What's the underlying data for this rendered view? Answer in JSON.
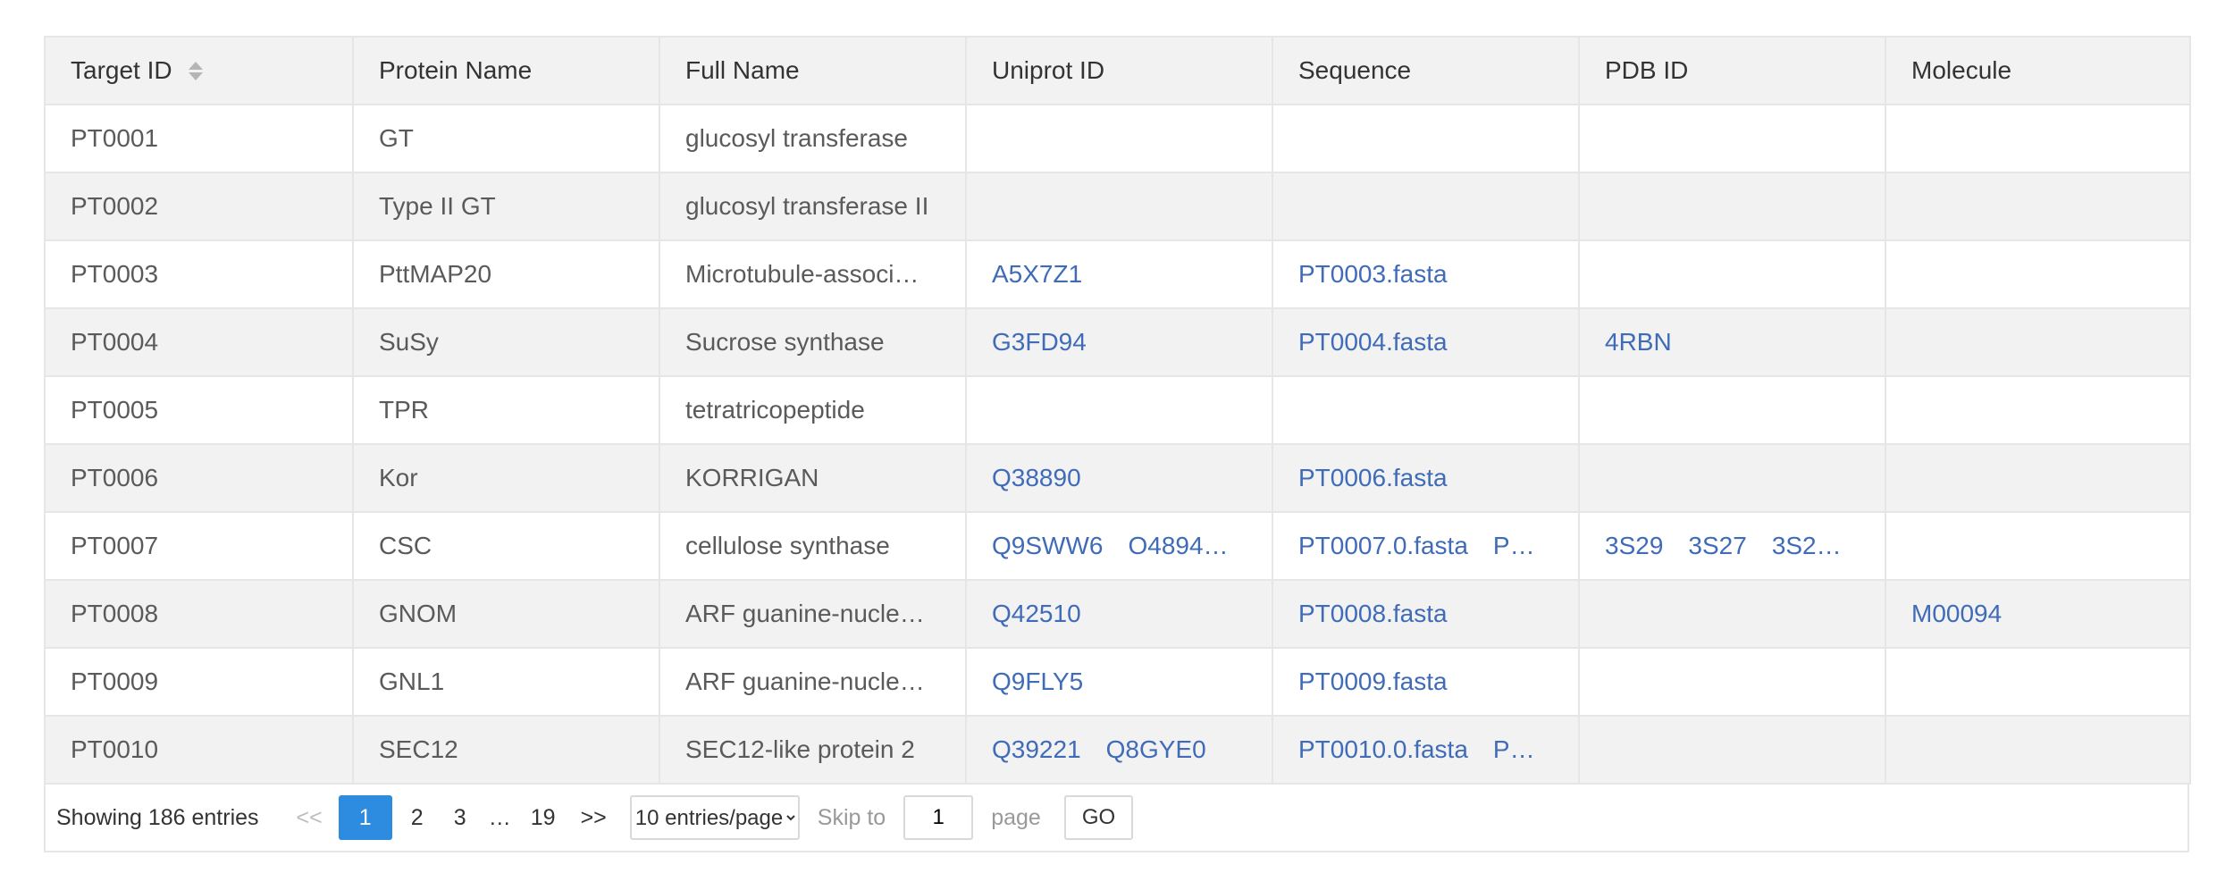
{
  "table": {
    "columns": [
      "Target ID",
      "Protein Name",
      "Full Name",
      "Uniprot ID",
      "Sequence",
      "PDB ID",
      "Molecule"
    ],
    "rows": [
      {
        "target_id": "PT0001",
        "protein_name": "GT",
        "full_name": "glucosyl transferase",
        "uniprot": [],
        "sequence": [],
        "pdb": [],
        "molecule": []
      },
      {
        "target_id": "PT0002",
        "protein_name": "Type II GT",
        "full_name": "glucosyl transferase II",
        "uniprot": [],
        "sequence": [],
        "pdb": [],
        "molecule": []
      },
      {
        "target_id": "PT0003",
        "protein_name": "PttMAP20",
        "full_name": "Microtubule-associ…",
        "uniprot": [
          "A5X7Z1"
        ],
        "sequence": [
          "PT0003.fasta"
        ],
        "pdb": [],
        "molecule": []
      },
      {
        "target_id": "PT0004",
        "protein_name": "SuSy",
        "full_name": "Sucrose synthase",
        "uniprot": [
          "G3FD94"
        ],
        "sequence": [
          "PT0004.fasta"
        ],
        "pdb": [
          "4RBN"
        ],
        "molecule": []
      },
      {
        "target_id": "PT0005",
        "protein_name": "TPR",
        "full_name": "tetratricopeptide",
        "uniprot": [],
        "sequence": [],
        "pdb": [],
        "molecule": []
      },
      {
        "target_id": "PT0006",
        "protein_name": "Kor",
        "full_name": "KORRIGAN",
        "uniprot": [
          "Q38890"
        ],
        "sequence": [
          "PT0006.fasta"
        ],
        "pdb": [],
        "molecule": []
      },
      {
        "target_id": "PT0007",
        "protein_name": "CSC",
        "full_name": "cellulose synthase",
        "uniprot": [
          "Q9SWW6",
          "O4894…"
        ],
        "sequence": [
          "PT0007.0.fasta",
          "P…"
        ],
        "pdb": [
          "3S29",
          "3S27",
          "3S2…"
        ],
        "molecule": []
      },
      {
        "target_id": "PT0008",
        "protein_name": "GNOM",
        "full_name": "ARF guanine-nucle…",
        "uniprot": [
          "Q42510"
        ],
        "sequence": [
          "PT0008.fasta"
        ],
        "pdb": [],
        "molecule": [
          "M00094"
        ]
      },
      {
        "target_id": "PT0009",
        "protein_name": "GNL1",
        "full_name": "ARF guanine-nucle…",
        "uniprot": [
          "Q9FLY5"
        ],
        "sequence": [
          "PT0009.fasta"
        ],
        "pdb": [],
        "molecule": []
      },
      {
        "target_id": "PT0010",
        "protein_name": "SEC12",
        "full_name": "SEC12-like protein 2",
        "uniprot": [
          "Q39221",
          "Q8GYE0"
        ],
        "sequence": [
          "PT0010.0.fasta",
          "P…"
        ],
        "pdb": [],
        "molecule": []
      }
    ]
  },
  "pagination": {
    "total_text": "Showing 186 entries",
    "prev_label": "<<",
    "next_label": ">>",
    "pages": [
      "1",
      "2",
      "3",
      "…",
      "19"
    ],
    "current_page": "1",
    "page_size_label": "10 entries/page",
    "skip_label": "Skip to",
    "skip_value": "1",
    "page_label": "page",
    "go_label": "GO"
  },
  "colors": {
    "link": "#3f6bb8",
    "active_page": "#2d8ce0",
    "header_bg": "#f2f2f2",
    "stripe_bg": "#f2f2f2"
  },
  "icons": {
    "sort": "sort-icon"
  }
}
